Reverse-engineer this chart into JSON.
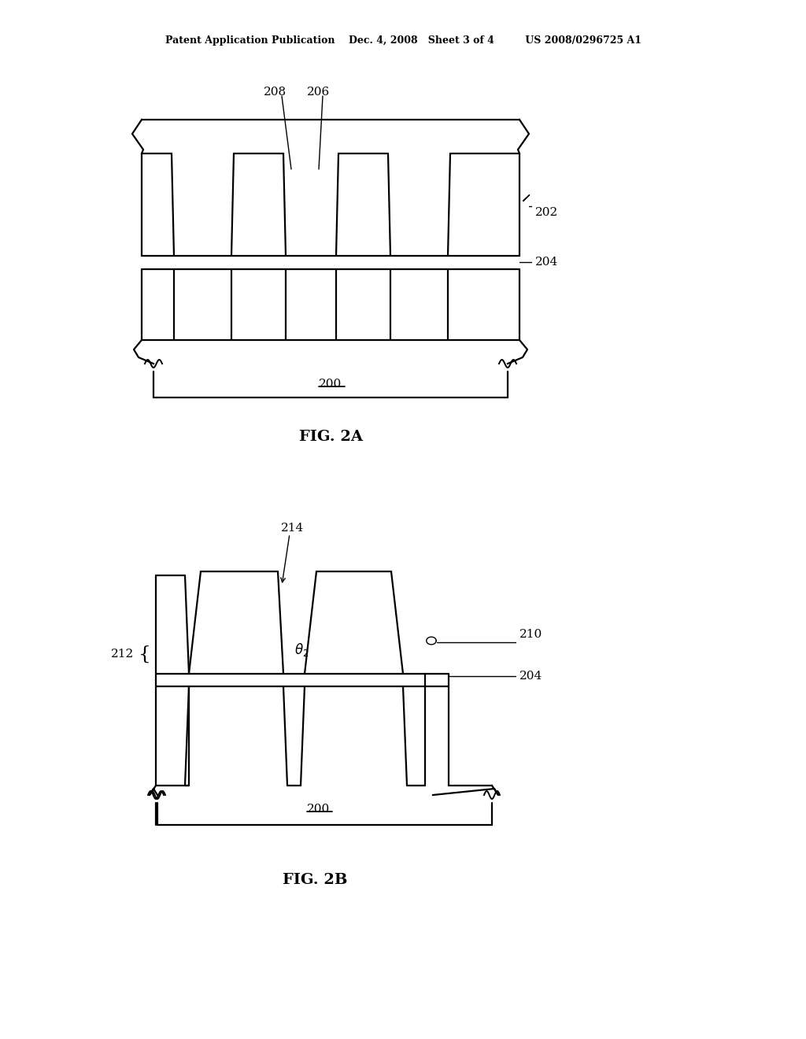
{
  "bg_color": "#ffffff",
  "line_color": "#000000",
  "header": "Patent Application Publication    Dec. 4, 2008   Sheet 3 of 4         US 2008/0296725 A1",
  "fig2a_label": "FIG. 2A",
  "fig2b_label": "FIG. 2B"
}
